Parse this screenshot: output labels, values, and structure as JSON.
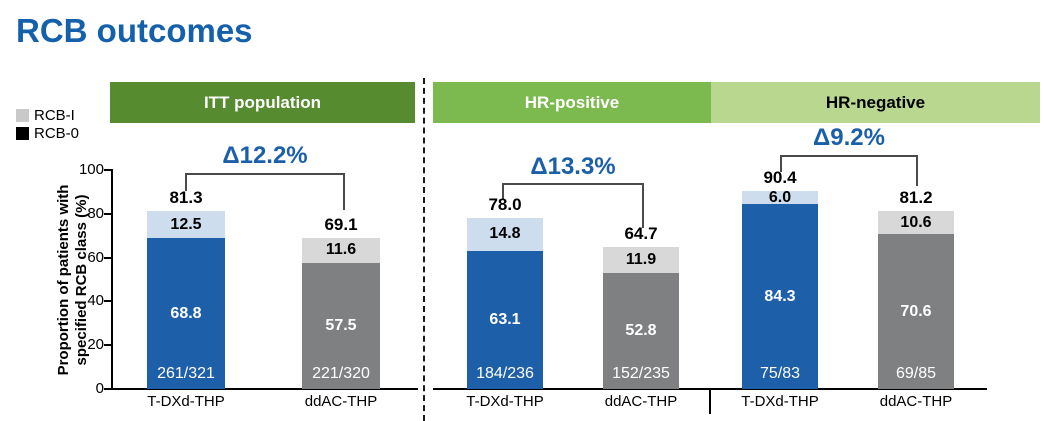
{
  "title": "RCB outcomes",
  "colors": {
    "title": "#1460ab",
    "delta": "#1b5fa9",
    "bar_blue": "#1e5fa9",
    "bar_blue_light": "#cdddee",
    "bar_gray": "#7f8082",
    "bar_gray_light": "#d8d8d8",
    "bracket": "#4a4a4a"
  },
  "legend": {
    "items": [
      {
        "label": "RCB-I",
        "color": "#c9c9c9"
      },
      {
        "label": "RCB-0",
        "color": "#000000"
      }
    ]
  },
  "y_axis": {
    "title_line1": "Proportion of patients with",
    "title_line2": "specified RCB class (%)",
    "ticks": [
      "100",
      "80",
      "60",
      "40",
      "20",
      "0"
    ]
  },
  "chart_data": {
    "type": "bar",
    "stacked": true,
    "unit": "%",
    "title": "RCB outcomes",
    "ylabel": "Proportion of patients with specified RCB class (%)",
    "ylim": [
      0,
      100
    ],
    "yticks": [
      0,
      20,
      40,
      60,
      80,
      100
    ],
    "legend": [
      "RCB-I",
      "RCB-0"
    ],
    "groups": [
      {
        "header": "ITT population",
        "header_bg": "#568c2f",
        "header_fg": "#ffffff",
        "delta_label": "Δ12.2%",
        "delta_value": 12.2,
        "bars": [
          {
            "label": "T-DXd-THP",
            "scheme": "blue",
            "rcb0": 68.8,
            "rcb1": 12.5,
            "total": 81.3,
            "rcb0_label": "68.8",
            "rcb1_label": "12.5",
            "total_label": "81.3",
            "fraction": "261/321"
          },
          {
            "label": "ddAC-THP",
            "scheme": "gray",
            "rcb0": 57.5,
            "rcb1": 11.6,
            "total": 69.1,
            "rcb0_label": "57.5",
            "rcb1_label": "11.6",
            "total_label": "69.1",
            "fraction": "221/320"
          }
        ]
      },
      {
        "header": "HR-positive",
        "header_bg": "#7cb94e",
        "header_fg": "#ffffff",
        "delta_label": "Δ13.3%",
        "delta_value": 13.3,
        "bars": [
          {
            "label": "T-DXd-THP",
            "scheme": "blue",
            "rcb0": 63.1,
            "rcb1": 14.8,
            "total": 78.0,
            "rcb0_label": "63.1",
            "rcb1_label": "14.8",
            "total_label": "78.0",
            "fraction": "184/236"
          },
          {
            "label": "ddAC-THP",
            "scheme": "gray",
            "rcb0": 52.8,
            "rcb1": 11.9,
            "total": 64.7,
            "rcb0_label": "52.8",
            "rcb1_label": "11.9",
            "total_label": "64.7",
            "fraction": "152/235"
          }
        ]
      },
      {
        "header": "HR-negative",
        "header_bg": "#b9d78f",
        "header_fg": "#000000",
        "delta_label": "Δ9.2%",
        "delta_value": 9.2,
        "bars": [
          {
            "label": "T-DXd-THP",
            "scheme": "blue",
            "rcb0": 84.3,
            "rcb1": 6.0,
            "total": 90.4,
            "rcb0_label": "84.3",
            "rcb1_label": "6.0",
            "total_label": "90.4",
            "fraction": "75/83"
          },
          {
            "label": "ddAC-THP",
            "scheme": "gray",
            "rcb0": 70.6,
            "rcb1": 10.6,
            "total": 81.2,
            "rcb0_label": "70.6",
            "rcb1_label": "10.6",
            "total_label": "81.2",
            "fraction": "69/85"
          }
        ]
      }
    ]
  }
}
